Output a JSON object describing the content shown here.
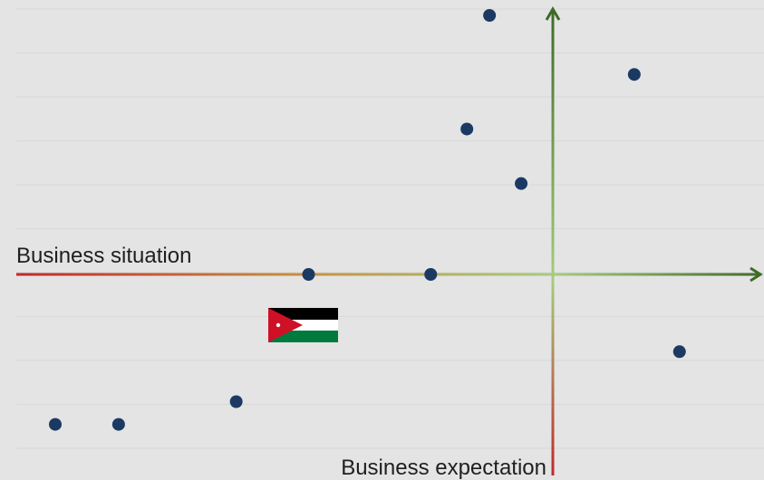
{
  "chart_data": {
    "type": "scatter",
    "xlabel": "Business situation",
    "ylabel": "Business expectation",
    "xlim": [
      -60,
      25
    ],
    "ylim": [
      -22,
      30
    ],
    "grid": true,
    "legend": "none",
    "colors": {
      "point": "#1b3a63",
      "negative_axis": "#c0282d",
      "neutral_axis": "#a6cc7e",
      "positive_axis": "#3d6b26",
      "grid": "#d9d9d9",
      "background": "#e4e4e4"
    },
    "country_flag": "Jordan",
    "points": [
      {
        "x": -55,
        "y": -16.5
      },
      {
        "x": -48,
        "y": -16.5
      },
      {
        "x": -35,
        "y": -14
      },
      {
        "x": -27,
        "y": 0
      },
      {
        "x": -13.5,
        "y": 0
      },
      {
        "x": -7,
        "y": 28.5
      },
      {
        "x": -9.5,
        "y": 16
      },
      {
        "x": -3.5,
        "y": 10
      },
      {
        "x": 9,
        "y": 22
      },
      {
        "x": 14,
        "y": -8.5
      }
    ]
  }
}
